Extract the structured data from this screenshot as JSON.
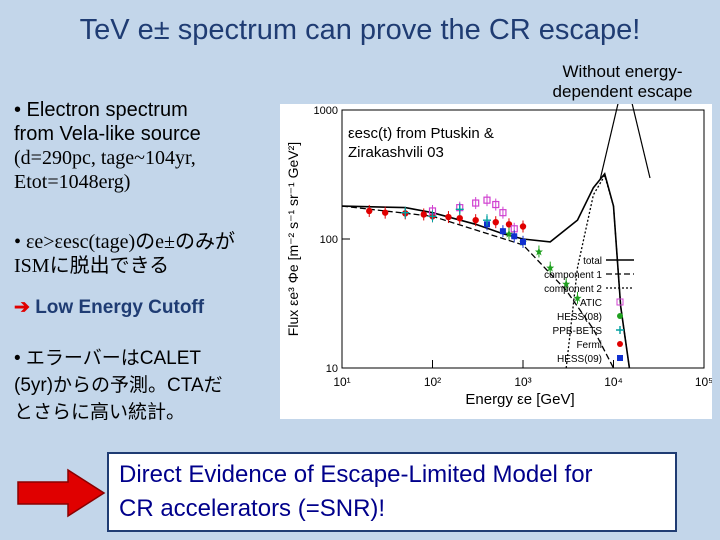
{
  "title": "TeV e± spectrum can prove the CR escape!",
  "bullets": {
    "b1_line1": "• Electron spectrum",
    "b1_line2": "from Vela-like source",
    "b1_line3": "(d=290pc, tage~104yr,",
    "b1_line4": "Etot=1048erg)",
    "b2_line1": "• εe>εesc(tage)のe±のみが",
    "b2_line2": "ISMに脱出できる",
    "b3": "Low Energy Cutoff",
    "b4_line1": "• エラーバーはCALET",
    "b4_line2": "(5yr)からの予測。CTAだ",
    "b4_line3": "とさらに高い統計。"
  },
  "note": "Without energy-dependent escape",
  "annotation_line1": "εesc(t) from Ptuskin &",
  "annotation_line2": "Zirakashvili 03",
  "bottom_text_line1": "Direct Evidence of Escape-Limited Model for",
  "bottom_text_line2": "CR accelerators (=SNR)!",
  "chart_data": {
    "type": "scatter",
    "xlabel": "Energy εe [GeV]",
    "ylabel": "Flux εe³ Φe [m⁻² s⁻¹ sr⁻¹ GeV²]",
    "xscale": "log",
    "yscale": "log",
    "xlim": [
      10,
      100000
    ],
    "ylim": [
      10,
      1000
    ],
    "x_ticks": [
      "10¹",
      "10²",
      "10³",
      "10⁴",
      "10⁵"
    ],
    "y_ticks": [
      "1000",
      "100",
      "10"
    ],
    "legend": [
      "total",
      "component 1",
      "component 2",
      "ATIC",
      "HESS(08)",
      "PPB-BETS",
      "Fermi",
      "HESS(09)"
    ],
    "legend_position": "right",
    "series": [
      {
        "name": "total",
        "x": [
          10,
          50,
          100,
          300,
          600,
          1000,
          2000,
          4000,
          6000,
          8000,
          10000,
          12000,
          15000
        ],
        "y": [
          180,
          175,
          160,
          130,
          110,
          100,
          95,
          140,
          250,
          320,
          180,
          30,
          10
        ]
      },
      {
        "name": "component 1",
        "x": [
          10,
          100,
          1000,
          3000,
          6000,
          10000
        ],
        "y": [
          180,
          150,
          90,
          40,
          20,
          10
        ]
      },
      {
        "name": "component 2",
        "x": [
          3000,
          4000,
          6000,
          8000,
          10000,
          12000,
          15000
        ],
        "y": [
          10,
          60,
          220,
          310,
          180,
          30,
          10
        ]
      },
      {
        "name": "Fermi",
        "x": [
          20,
          30,
          50,
          80,
          100,
          150,
          200,
          300,
          500,
          700,
          1000
        ],
        "y": [
          165,
          160,
          158,
          155,
          150,
          148,
          145,
          140,
          135,
          130,
          125
        ]
      },
      {
        "name": "ATIC",
        "x": [
          100,
          200,
          300,
          400,
          500,
          600,
          800
        ],
        "y": [
          165,
          175,
          190,
          200,
          185,
          160,
          120
        ]
      },
      {
        "name": "HESS(08)",
        "x": [
          700,
          1000,
          1500,
          2000,
          3000,
          4000
        ],
        "y": [
          110,
          95,
          80,
          60,
          45,
          35
        ]
      },
      {
        "name": "HESS(09)",
        "x": [
          400,
          600,
          800,
          1000
        ],
        "y": [
          130,
          115,
          105,
          95
        ]
      },
      {
        "name": "PPB-BETS",
        "x": [
          50,
          100,
          200,
          400
        ],
        "y": [
          160,
          150,
          170,
          140
        ]
      }
    ]
  }
}
